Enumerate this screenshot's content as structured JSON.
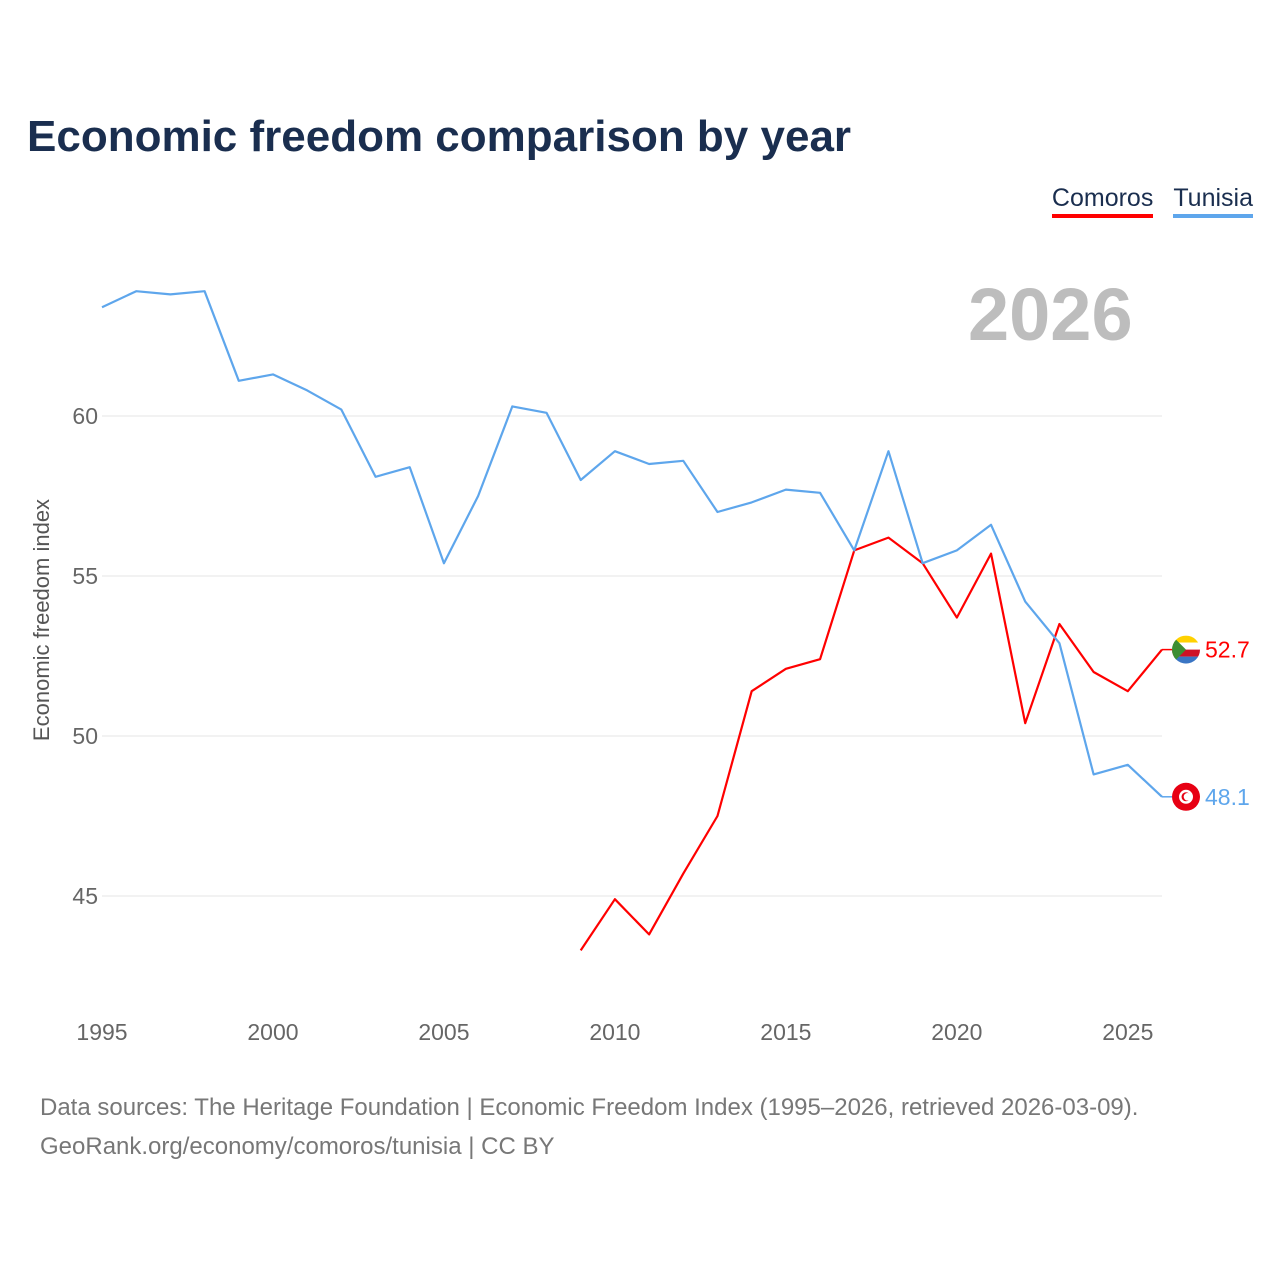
{
  "chart_data": {
    "type": "line",
    "title": "Economic freedom comparison by year",
    "ylabel": "Economic freedom index",
    "xlabel": "",
    "current_year_label": "2026",
    "ylim": [
      41.8,
      64.3
    ],
    "xlim": [
      1995,
      2026
    ],
    "yticks": [
      45,
      50,
      55,
      60
    ],
    "xticks": [
      1995,
      2000,
      2005,
      2010,
      2015,
      2020,
      2025
    ],
    "grid": true,
    "legend_position": "top-right",
    "series": [
      {
        "name": "Comoros",
        "color": "#ff0000",
        "end_label": "52.7",
        "x": [
          2009,
          2010,
          2011,
          2012,
          2013,
          2014,
          2015,
          2016,
          2017,
          2018,
          2019,
          2020,
          2021,
          2022,
          2023,
          2024,
          2025,
          2026
        ],
        "values": [
          43.3,
          44.9,
          43.8,
          45.7,
          47.5,
          51.4,
          52.1,
          52.4,
          55.8,
          56.2,
          55.4,
          53.7,
          55.7,
          50.4,
          53.5,
          52.0,
          51.4,
          52.7
        ]
      },
      {
        "name": "Tunisia",
        "color": "#5ea6ec",
        "end_label": "48.1",
        "x": [
          1995,
          1996,
          1997,
          1998,
          1999,
          2000,
          2001,
          2002,
          2003,
          2004,
          2005,
          2006,
          2007,
          2008,
          2009,
          2010,
          2011,
          2012,
          2013,
          2014,
          2015,
          2016,
          2017,
          2018,
          2019,
          2020,
          2021,
          2022,
          2023,
          2024,
          2025,
          2026
        ],
        "values": [
          63.4,
          63.9,
          63.8,
          63.9,
          61.1,
          61.3,
          60.8,
          60.2,
          58.1,
          58.4,
          55.4,
          57.5,
          60.3,
          60.1,
          58.0,
          58.9,
          58.5,
          58.6,
          57.0,
          57.3,
          57.7,
          57.6,
          55.8,
          58.9,
          55.4,
          55.8,
          56.6,
          54.2,
          52.9,
          48.8,
          49.1,
          48.1
        ]
      }
    ]
  },
  "footer": {
    "line1": "Data sources: The Heritage Foundation | Economic Freedom Index (1995–2026, retrieved 2026-03-09).",
    "line2": "GeoRank.org/economy/comoros/tunisia | CC BY"
  }
}
